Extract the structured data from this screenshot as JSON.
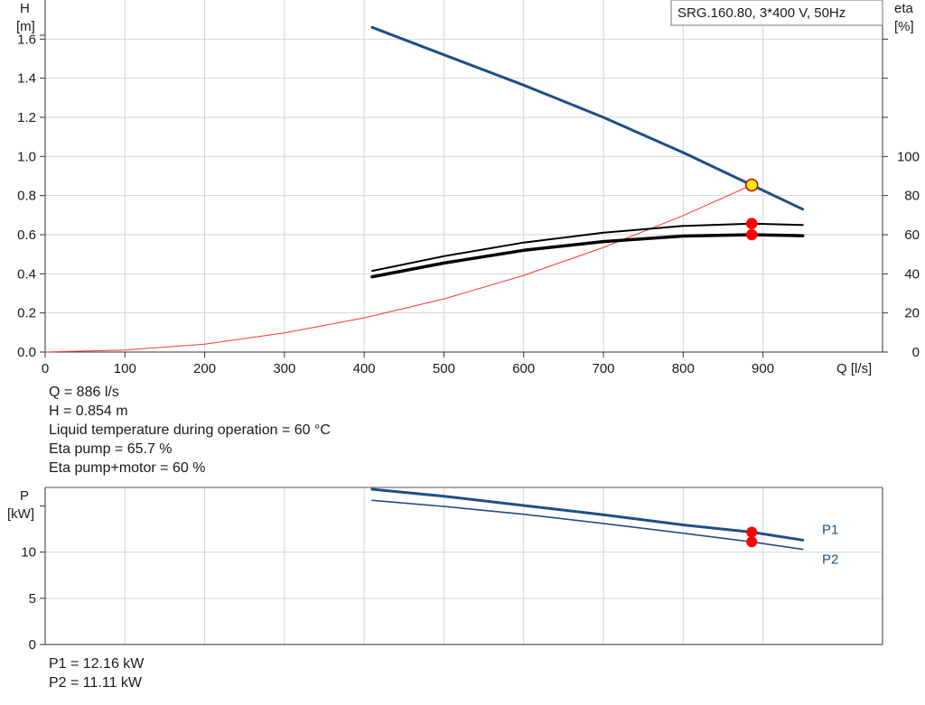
{
  "chart_data": [
    {
      "type": "line",
      "legend_box": "SRG.160.80, 3*400 V, 50Hz",
      "ylabel_left": [
        "H",
        "[m]"
      ],
      "ylabel_right": [
        "eta",
        "[%]"
      ],
      "xlabel": "Q [l/s]",
      "xlim": [
        0,
        1050
      ],
      "ylim_left": [
        0,
        1.8
      ],
      "ylim_right": [
        0,
        180
      ],
      "x_ticks": [
        "0",
        "100",
        "200",
        "300",
        "400",
        "500",
        "600",
        "700",
        "800",
        "900"
      ],
      "y_ticks_left": [
        "0.0",
        "0.2",
        "0.4",
        "0.6",
        "0.8",
        "1.0",
        "1.2",
        "1.4",
        "1.6"
      ],
      "y_ticks_right": [
        "0",
        "20",
        "40",
        "60",
        "80",
        "100"
      ],
      "grid": true,
      "series": [
        {
          "axis": "left",
          "color": "#1f4e86",
          "width": 3,
          "x": [
            410,
            500,
            600,
            700,
            800,
            886,
            950
          ],
          "y": [
            1.66,
            1.52,
            1.365,
            1.2,
            1.02,
            0.854,
            0.73
          ]
        },
        {
          "axis": "right",
          "color": "#000000",
          "width": 2,
          "x": [
            410,
            500,
            600,
            700,
            800,
            886,
            950
          ],
          "y": [
            41.5,
            49,
            56,
            61,
            64.5,
            65.7,
            65
          ]
        },
        {
          "axis": "right",
          "color": "#000000",
          "width": 3.5,
          "x": [
            410,
            500,
            600,
            700,
            800,
            886,
            950
          ],
          "y": [
            38.5,
            45.5,
            52,
            56.5,
            59.3,
            60,
            59.5
          ]
        },
        {
          "axis": "left",
          "color": "#ff3333",
          "width": 1,
          "x": [
            0,
            100,
            200,
            300,
            400,
            500,
            600,
            700,
            800,
            886
          ],
          "y": [
            0,
            0.01,
            0.04,
            0.098,
            0.175,
            0.272,
            0.392,
            0.535,
            0.698,
            0.854
          ]
        }
      ],
      "points": [
        {
          "axis": "left",
          "x": 886,
          "y": 0.854,
          "fill": "#ffee00",
          "stroke": "#cc0000"
        },
        {
          "axis": "right",
          "x": 886,
          "y": 65.7,
          "fill": "#ff0000",
          "stroke": "#ff0000"
        },
        {
          "axis": "right",
          "x": 886,
          "y": 60,
          "fill": "#ff0000",
          "stroke": "#ff0000"
        }
      ]
    },
    {
      "type": "line",
      "ylabel": [
        "P",
        "[kW]"
      ],
      "xlim": [
        0,
        1050
      ],
      "ylim": [
        0,
        17
      ],
      "y_ticks": [
        "0",
        "5",
        "10"
      ],
      "grid": true,
      "series": [
        {
          "name": "P1",
          "color": "#1f4e86",
          "width": 3,
          "x": [
            410,
            500,
            600,
            700,
            800,
            886,
            950
          ],
          "y": [
            16.8,
            16.05,
            15.05,
            14.05,
            12.95,
            12.16,
            11.3
          ]
        },
        {
          "name": "P2",
          "color": "#1f4e86",
          "width": 1.6,
          "x": [
            410,
            500,
            600,
            700,
            800,
            886,
            950
          ],
          "y": [
            15.6,
            14.95,
            14.1,
            13.1,
            12.05,
            11.11,
            10.3
          ]
        }
      ],
      "points": [
        {
          "x": 886,
          "y": 12.16,
          "fill": "#ff0000"
        },
        {
          "x": 886,
          "y": 11.11,
          "fill": "#ff0000"
        }
      ]
    }
  ],
  "info": [
    "Q = 886 l/s",
    "H = 0.854 m",
    "Liquid temperature during operation = 60 °C",
    "Eta pump = 65.7 %",
    "Eta pump+motor = 60 %"
  ],
  "power_info": [
    "P1 = 12.16 kW",
    "P2 = 11.11 kW"
  ]
}
